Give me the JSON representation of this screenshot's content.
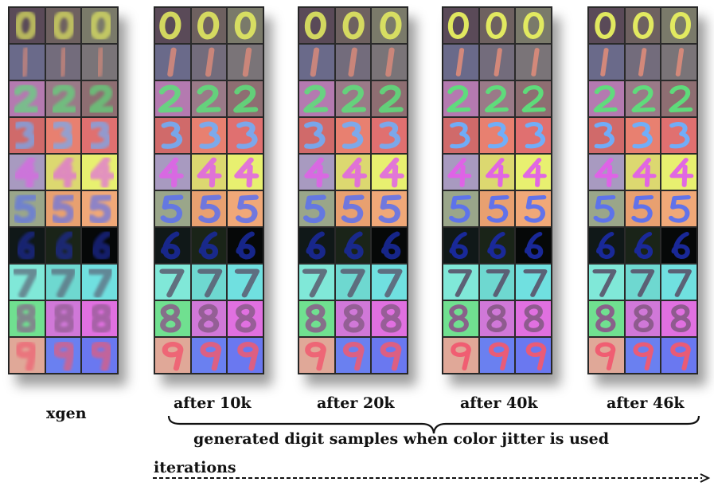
{
  "panels": [
    {
      "label": "xgen",
      "style": "blurry"
    },
    {
      "label": "after 10k",
      "style": "mid"
    },
    {
      "label": "after 20k",
      "style": "mid"
    },
    {
      "label": "after 40k",
      "style": "sharp"
    },
    {
      "label": "after 46k",
      "style": "sharp"
    }
  ],
  "rows": [
    {
      "digit": "0",
      "bg": [
        "#5a4a58",
        "#6e6160",
        "#7a7a6a"
      ],
      "fg": "#e8f060"
    },
    {
      "digit": "1",
      "bg": [
        "#6a6a8a",
        "#736c7c",
        "#7a7478"
      ],
      "fg": "#d88a7a"
    },
    {
      "digit": "2",
      "bg": [
        "#b47ab0",
        "#9a7a88",
        "#8e6e72"
      ],
      "fg": "#5ce07a"
    },
    {
      "digit": "3",
      "bg": [
        "#d06a6a",
        "#e88070",
        "#e07070"
      ],
      "fg": "#6ab0ff"
    },
    {
      "digit": "4",
      "bg": [
        "#a89ac0",
        "#dcd870",
        "#e8f070"
      ],
      "fg": "#e060e8"
    },
    {
      "digit": "5",
      "bg": [
        "#9aa68a",
        "#e8a070",
        "#f0a878"
      ],
      "fg": "#5a70f0"
    },
    {
      "digit": "6",
      "bg": [
        "#101818",
        "#1a2418",
        "#060808"
      ],
      "fg": "#1a2aa0"
    },
    {
      "digit": "7",
      "bg": [
        "#80e8d8",
        "#6ed8d0",
        "#70e0e0"
      ],
      "fg": "#5a5a70"
    },
    {
      "digit": "8",
      "bg": [
        "#70e090",
        "#d078d8",
        "#e070e0"
      ],
      "fg": "#8a5a8a"
    },
    {
      "digit": "9",
      "bg": [
        "#e0a898",
        "#6a80f0",
        "#6a78f0"
      ],
      "fg": "#f05a70"
    }
  ],
  "caption": "generated digit samples when color jitter is used",
  "axis_label": "iterations"
}
